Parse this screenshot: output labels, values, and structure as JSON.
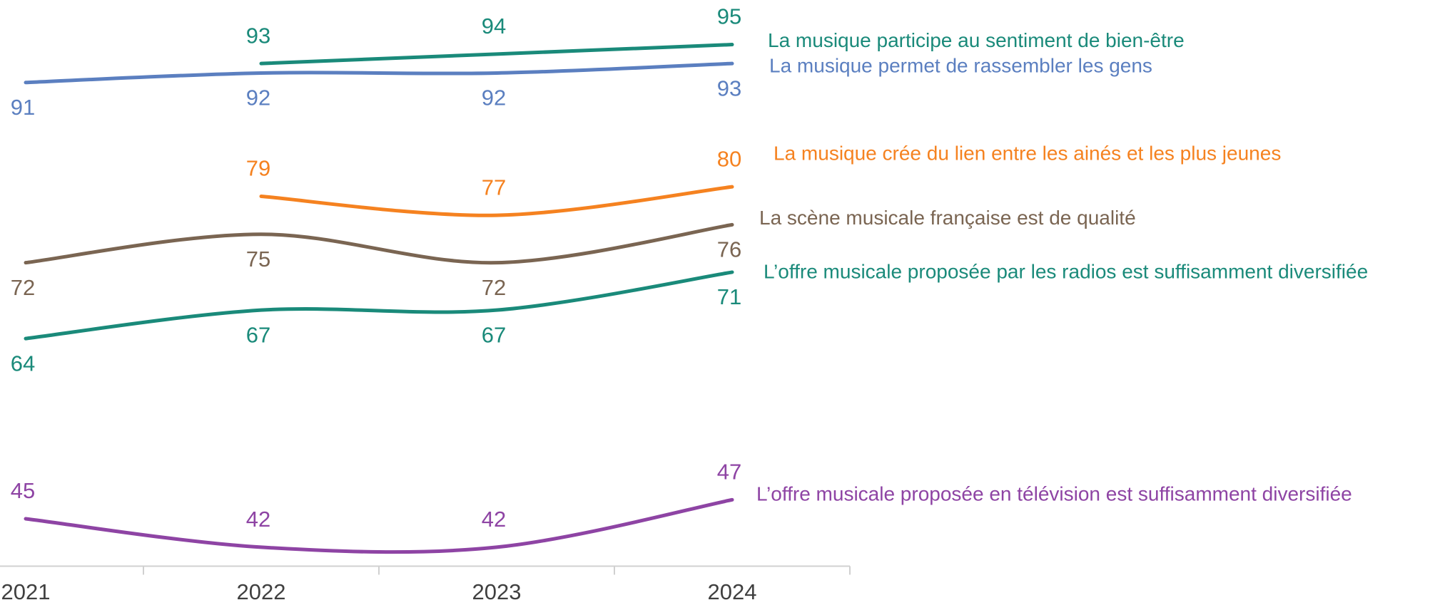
{
  "chart_data": {
    "type": "line",
    "categories": [
      "2021",
      "2022",
      "2023",
      "2024"
    ],
    "series": [
      {
        "name": "La musique participe au sentiment de bien-être",
        "color": "#1a8a7a",
        "values": [
          null,
          93,
          94,
          95
        ]
      },
      {
        "name": "La musique permet de rassembler les gens",
        "color": "#5b7fc0",
        "values": [
          91,
          92,
          92,
          93
        ]
      },
      {
        "name": "La musique crée du lien entre les ainés et les plus jeunes",
        "color": "#f58220",
        "values": [
          null,
          79,
          77,
          80
        ]
      },
      {
        "name": "La scène musicale française est de qualité",
        "color": "#7a6552",
        "values": [
          72,
          75,
          72,
          76
        ]
      },
      {
        "name": "L’offre musicale proposée par les radios est suffisamment diversifiée",
        "color": "#1a8a7a",
        "values": [
          64,
          67,
          67,
          71
        ]
      },
      {
        "name": "L’offre musicale proposée en télévision est suffisamment diversifiée",
        "color": "#8e44a4",
        "values": [
          45,
          42,
          42,
          47
        ]
      }
    ],
    "ylim": [
      40,
      100
    ]
  }
}
